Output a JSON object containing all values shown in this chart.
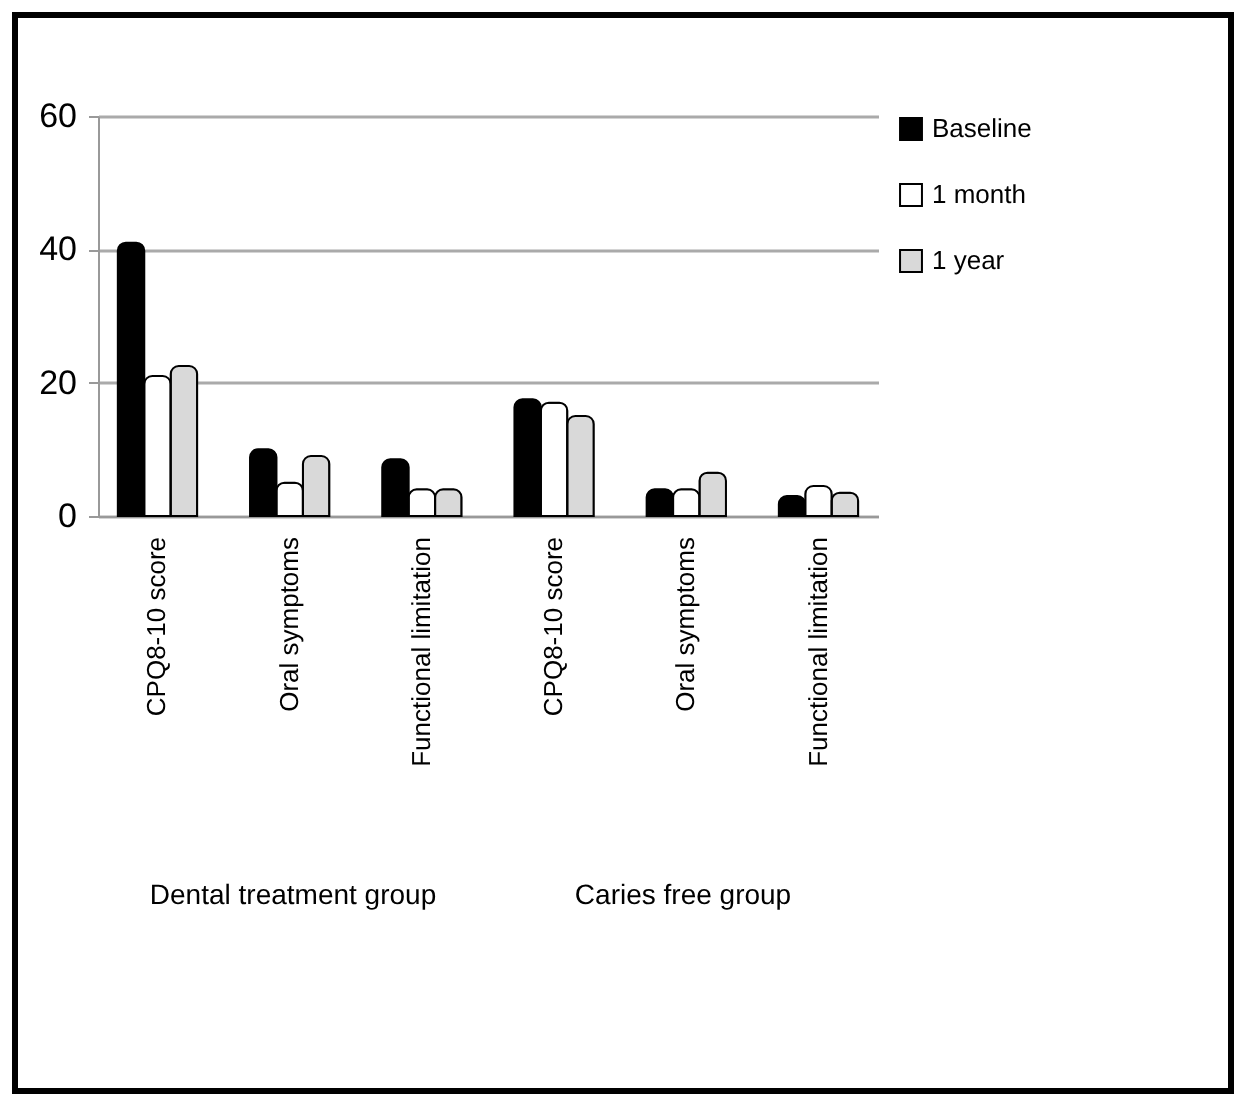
{
  "chart_data": {
    "type": "bar",
    "categories": [
      "CPQ8-10 score",
      "Oral symptoms",
      "Functional limitation",
      "CPQ8-10 score",
      "Oral symptoms",
      "Functional limitation"
    ],
    "annotations": [
      "Dental treatment group",
      "Caries free group"
    ],
    "series": [
      {
        "name": "Baseline",
        "color": "#000000",
        "values": [
          41,
          10,
          8.5,
          17.5,
          4,
          3
        ]
      },
      {
        "name": "1 month",
        "color": "#ffffff",
        "values": [
          21,
          5,
          4,
          17,
          4,
          4.5
        ]
      },
      {
        "name": "1 year",
        "color": "#d9d9d9",
        "values": [
          22.5,
          9,
          4,
          15,
          6.5,
          3.5
        ]
      }
    ],
    "ylim": [
      0,
      60
    ],
    "yticks": [
      0,
      20,
      40,
      60
    ],
    "grid": "y",
    "legend": "right"
  }
}
